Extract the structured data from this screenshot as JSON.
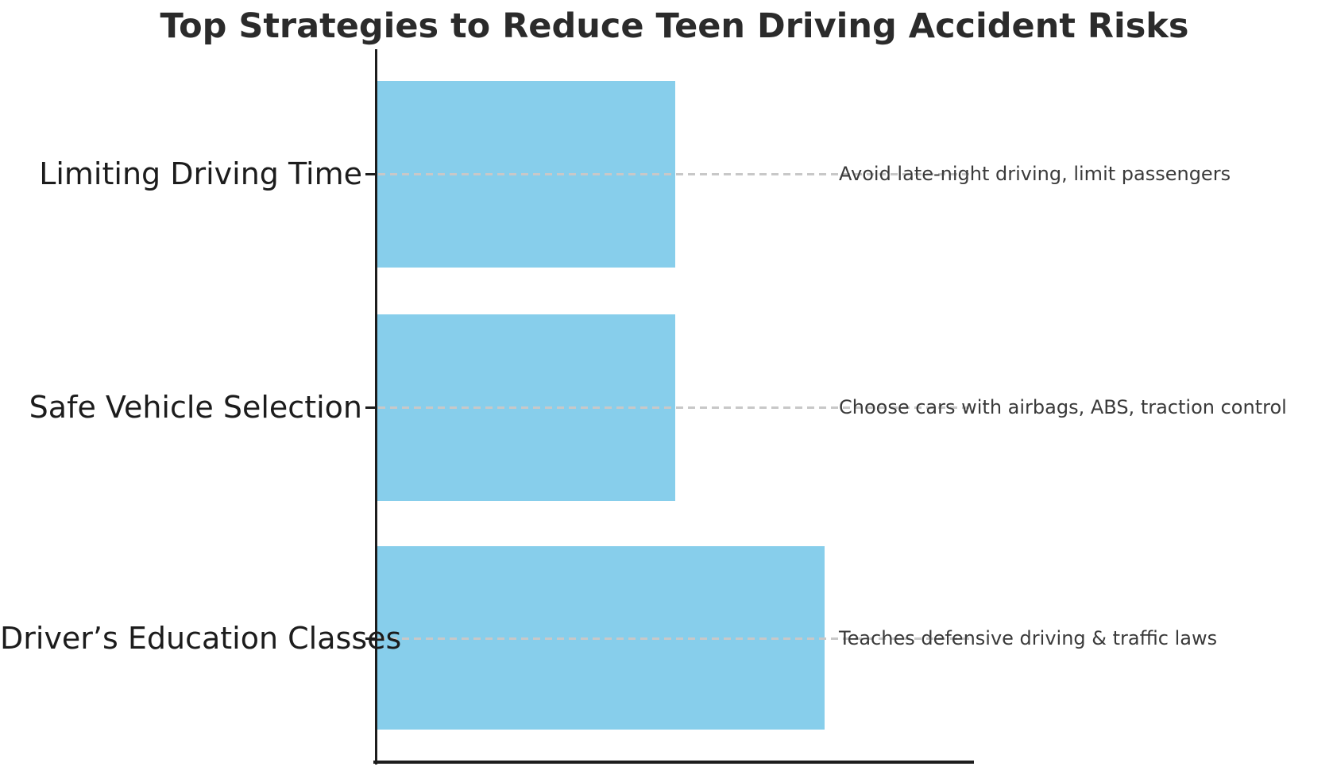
{
  "chart_data": {
    "type": "bar",
    "orientation": "horizontal",
    "title": "Top Strategies to Reduce Teen Driving Accident Risks",
    "categories": [
      "Limiting Driving Time",
      "Safe Vehicle Selection",
      "Driver’s Education Classes"
    ],
    "values": [
      0.5,
      0.5,
      0.75
    ],
    "xlim": [
      0,
      1
    ],
    "annotations": [
      "Avoid late-night driving, limit passengers",
      "Choose cars with airbags, ABS, traction control",
      "Teaches defensive driving & traffic laws"
    ],
    "x_tick_labels": [],
    "xlabel": "",
    "ylabel": "",
    "legend": null,
    "grid": false,
    "bar_color": "#87CEEB",
    "axis_color": "#1d1d1d",
    "leader_line_color": "#c8c8c8",
    "leader_line_style": "dashed",
    "title_color": "#2b2b2b",
    "label_color": "#1c1c1c",
    "annotation_color": "#3a3a3a"
  }
}
